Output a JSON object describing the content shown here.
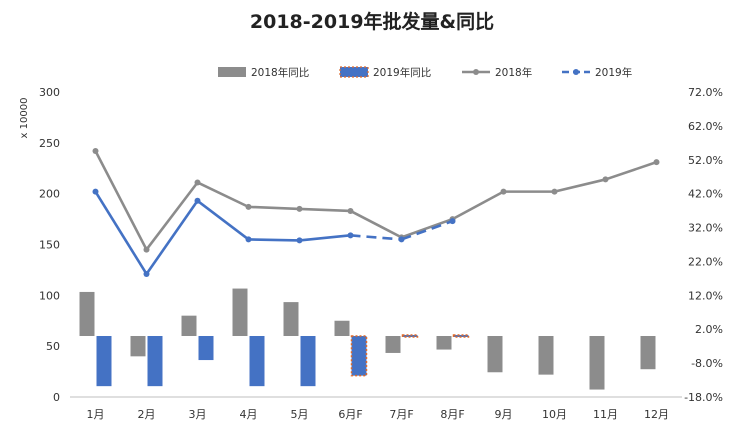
{
  "chart_data": {
    "type": "bar+line",
    "title": "2018-2019年批发量&同比",
    "ylabel_left": "x 10000",
    "categories": [
      "1月",
      "2月",
      "3月",
      "4月",
      "5月",
      "6月F",
      "7月F",
      "8月F",
      "9月",
      "10月",
      "11月",
      "12月"
    ],
    "left_axis": {
      "min": 0,
      "max": 300,
      "ticks": [
        "0",
        "50",
        "100",
        "150",
        "200",
        "250",
        "300"
      ]
    },
    "right_axis": {
      "min": -18,
      "max": 72,
      "ticks": [
        "-18.0%",
        "-8.0%",
        "2.0%",
        "12.0%",
        "22.0%",
        "32.0%",
        "42.0%",
        "52.0%",
        "62.0%",
        "72.0%"
      ]
    },
    "series": [
      {
        "name": "2018年同比",
        "type": "bar",
        "axis": "right",
        "color": "#8c8c8c",
        "values": [
          13,
          -6,
          6,
          14,
          10,
          4.5,
          -5,
          -4,
          -10.7,
          -11.4,
          -15.8,
          -9.8
        ]
      },
      {
        "name": "2019年同比",
        "type": "bar",
        "axis": "right",
        "color": "#4472c4",
        "values": [
          -14.8,
          -14.8,
          -7.1,
          -14.8,
          -14.8,
          -11.7,
          0.3,
          0.3,
          null,
          null,
          null,
          null
        ]
      },
      {
        "name": "2018年",
        "type": "line",
        "axis": "left",
        "color": "#8c8c8c",
        "values": [
          242,
          145,
          211,
          187,
          185,
          183,
          157,
          175,
          202,
          202,
          214,
          231
        ]
      },
      {
        "name": "2019年",
        "type": "line",
        "axis": "left",
        "color": "#4472c4",
        "values": [
          202,
          121,
          193,
          155,
          154,
          159,
          155,
          173,
          null,
          null,
          null,
          null
        ],
        "forecast_from_index": 5
      }
    ],
    "legend_position": "top",
    "grid": false
  }
}
